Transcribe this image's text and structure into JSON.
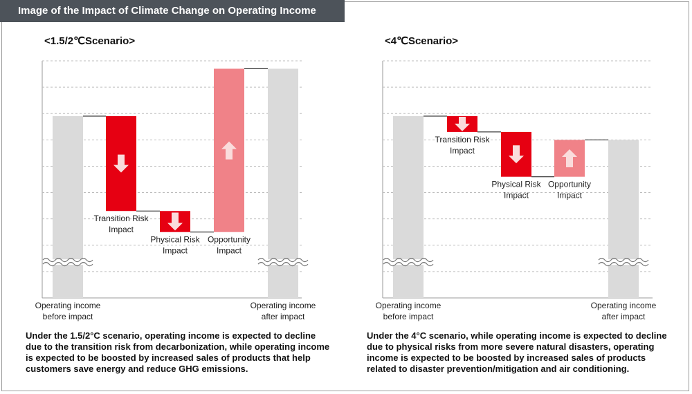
{
  "header": {
    "title": "Image of the Impact of Climate Change on Operating Income"
  },
  "colors": {
    "base_bar": "#dadada",
    "risk": "#e60012",
    "opportunity": "#f08288",
    "arrow": "#fadcdc",
    "grid": "#bdbdbd",
    "title_bg": "#4d535a"
  },
  "chart_data": [
    {
      "type": "waterfall",
      "title": "<1.5/2℃Scenario>",
      "ylim": [
        0,
        9
      ],
      "steps": [
        {
          "label": "Operating income\nbefore impact",
          "kind": "base",
          "start": 0,
          "end": 6.9
        },
        {
          "label": "Transition Risk\nImpact",
          "kind": "risk",
          "start": 6.9,
          "end": 3.3
        },
        {
          "label": "Physical Risk\nImpact",
          "kind": "risk",
          "start": 3.3,
          "end": 2.5
        },
        {
          "label": "Opportunity\nImpact",
          "kind": "opportunity",
          "start": 2.5,
          "end": 8.7
        },
        {
          "label": "Operating income\nafter impact",
          "kind": "base",
          "start": 0,
          "end": 8.7
        }
      ],
      "description": "Under the 1.5/2°C scenario, operating income is expected to decline due to the transition risk from decarbonization, while operating income is expected to be boosted by increased sales of products that help customers save energy and reduce GHG emissions."
    },
    {
      "type": "waterfall",
      "title": "<4℃Scenario>",
      "ylim": [
        0,
        9
      ],
      "steps": [
        {
          "label": "Operating income\nbefore impact",
          "kind": "base",
          "start": 0,
          "end": 6.9
        },
        {
          "label": "Transition Risk\nImpact",
          "kind": "risk",
          "start": 6.9,
          "end": 6.3
        },
        {
          "label": "Physical Risk\nImpact",
          "kind": "risk",
          "start": 6.3,
          "end": 4.6
        },
        {
          "label": "Opportunity\nImpact",
          "kind": "opportunity",
          "start": 4.6,
          "end": 6.0
        },
        {
          "label": "Operating income\nafter impact",
          "kind": "base",
          "start": 0,
          "end": 6.0
        }
      ],
      "description": "Under the 4°C scenario, while operating income is expected to decline due to physical risks from more severe natural disasters, operating income is expected to be boosted by increased sales of products related to disaster prevention/mitigation and air conditioning."
    }
  ]
}
